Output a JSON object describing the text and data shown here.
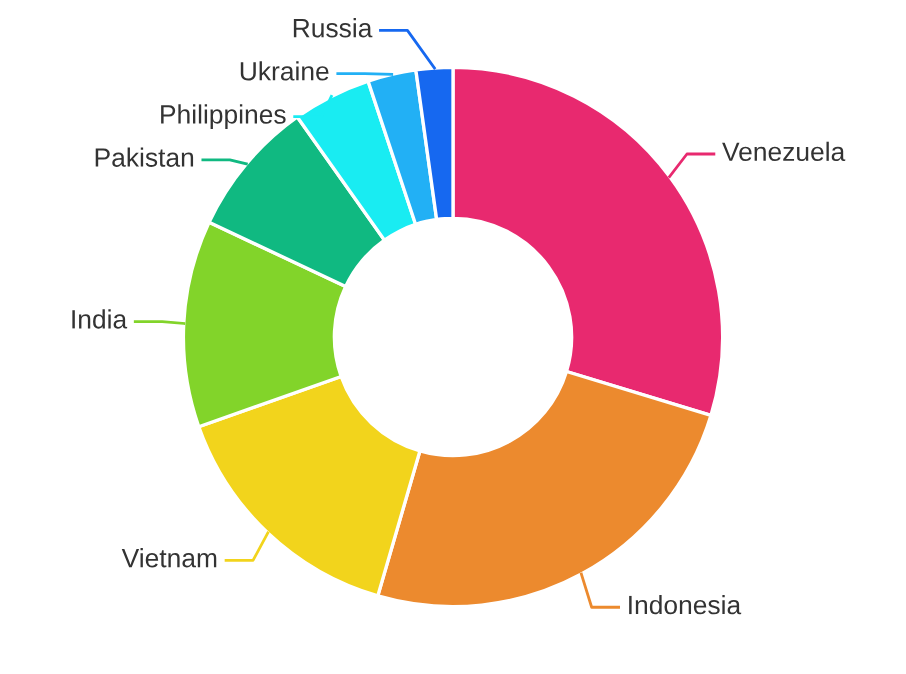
{
  "chart_data": {
    "type": "donut",
    "categories": [
      "Venezuela",
      "Indonesia",
      "Vietnam",
      "India",
      "Pakistan",
      "Philippines",
      "Ukraine",
      "Russia"
    ],
    "values": [
      29.7,
      24.8,
      15.1,
      12.4,
      8.2,
      4.7,
      2.9,
      2.2
    ],
    "colors": [
      "#e8296f",
      "#ec8a2e",
      "#f2d41c",
      "#82d42a",
      "#10b981",
      "#19ecf2",
      "#22b0f5",
      "#1668f0"
    ],
    "legend": false
  }
}
